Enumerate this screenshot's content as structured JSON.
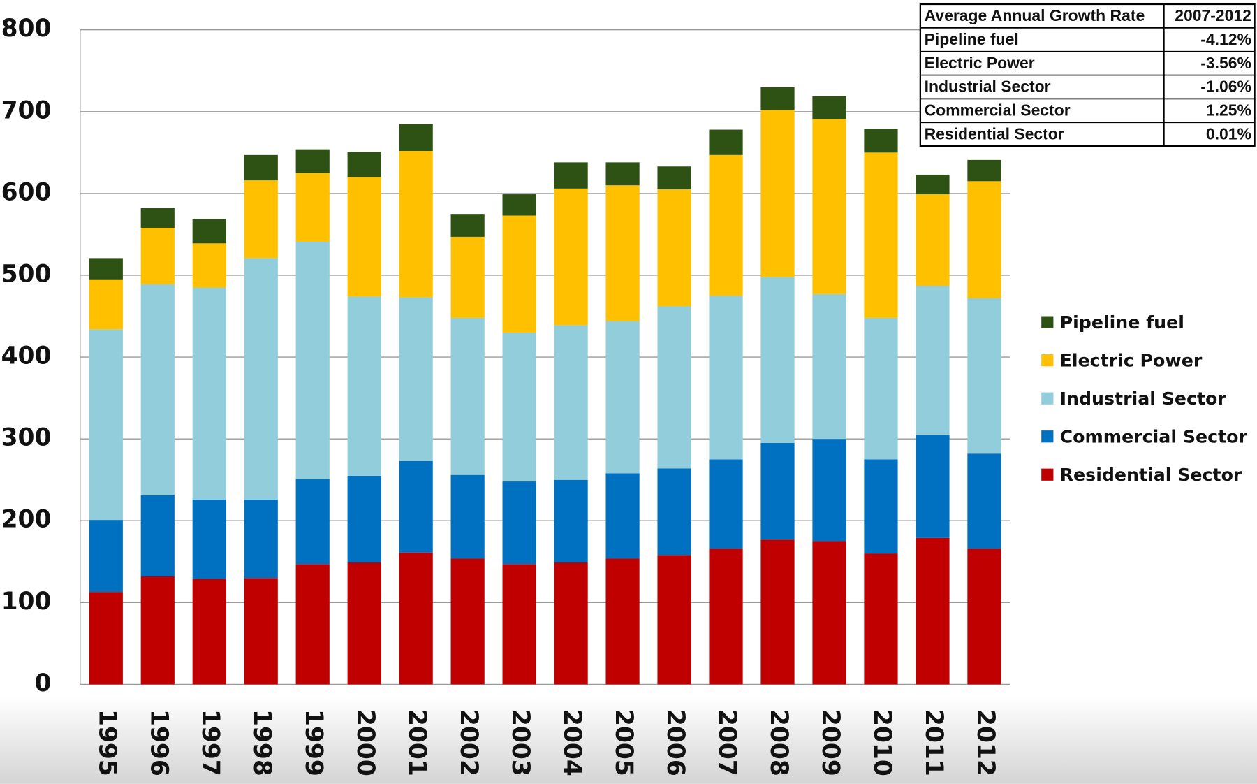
{
  "chart_data": {
    "type": "stacked-bar",
    "categories": [
      "1995",
      "1996",
      "1997",
      "1998",
      "1999",
      "2000",
      "2001",
      "2002",
      "2003",
      "2004",
      "2005",
      "2006",
      "2007",
      "2008",
      "2009",
      "2010",
      "2011",
      "2012"
    ],
    "series": [
      {
        "name": "Residential Sector",
        "color": "#c00000",
        "values": [
          113,
          132,
          129,
          130,
          147,
          149,
          161,
          154,
          147,
          149,
          154,
          158,
          166,
          177,
          175,
          160,
          179,
          166
        ]
      },
      {
        "name": "Commercial Sector",
        "color": "#0070c0",
        "values": [
          88,
          99,
          97,
          96,
          104,
          106,
          112,
          102,
          101,
          101,
          104,
          106,
          109,
          118,
          125,
          115,
          126,
          116
        ]
      },
      {
        "name": "Industrial Sector",
        "color": "#92cddc",
        "values": [
          233,
          258,
          259,
          295,
          290,
          219,
          200,
          192,
          182,
          189,
          186,
          198,
          200,
          203,
          177,
          173,
          182,
          190
        ]
      },
      {
        "name": "Electric Power",
        "color": "#ffc000",
        "values": [
          61,
          69,
          54,
          95,
          84,
          146,
          179,
          99,
          143,
          167,
          166,
          143,
          172,
          204,
          214,
          202,
          112,
          143
        ]
      },
      {
        "name": "Pipeline fuel",
        "color": "#2e5214",
        "values": [
          26,
          24,
          30,
          31,
          29,
          31,
          33,
          28,
          26,
          32,
          28,
          28,
          31,
          28,
          28,
          29,
          24,
          26
        ]
      }
    ],
    "ylim": [
      0,
      800
    ],
    "yticks": [
      0,
      100,
      200,
      300,
      400,
      500,
      600,
      700,
      800
    ],
    "grid": true,
    "legend": "right"
  },
  "table": {
    "header": [
      "Average Annual Growth Rate",
      "2007-2012"
    ],
    "rows": [
      [
        "Pipeline fuel",
        "-4.12%"
      ],
      [
        "Electric Power",
        "-3.56%"
      ],
      [
        "Industrial Sector",
        "-1.06%"
      ],
      [
        "Commercial Sector",
        "1.25%"
      ],
      [
        "Residential Sector",
        "0.01%"
      ]
    ]
  }
}
